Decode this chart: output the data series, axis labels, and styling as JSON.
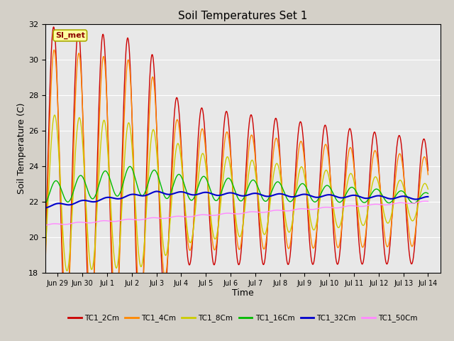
{
  "title": "Soil Temperatures Set 1",
  "xlabel": "Time",
  "ylabel": "Soil Temperature (C)",
  "ylim": [
    18,
    32
  ],
  "yticks": [
    18,
    20,
    22,
    24,
    26,
    28,
    30,
    32
  ],
  "fig_bg_color": "#d4d0c8",
  "plot_bg_color": "#e8e8e8",
  "annotation_text": "SI_met",
  "series_colors": {
    "TC1_2Cm": "#cc0000",
    "TC1_4Cm": "#ff8800",
    "TC1_8Cm": "#cccc00",
    "TC1_16Cm": "#00bb00",
    "TC1_32Cm": "#0000cc",
    "TC1_50Cm": "#ff88ff"
  },
  "tick_labels": [
    "Jun 29",
    "Jun 30",
    "Jul 1",
    "Jul 2",
    "Jul 3",
    "Jul 4",
    "Jul 5",
    "Jul 6",
    "Jul 7",
    "Jul 8",
    "Jul 9",
    "Jul 10",
    "Jul 11",
    "Jul 12",
    "Jul 13",
    "Jul 14"
  ]
}
